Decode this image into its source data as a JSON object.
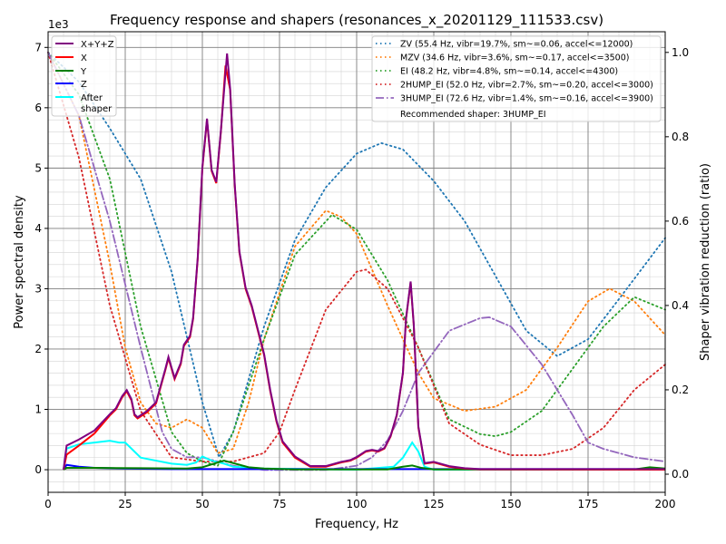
{
  "chart_data": {
    "type": "line",
    "title": "Frequency response and shapers (resonances_x_20201129_111533.csv)",
    "xlabel": "Frequency, Hz",
    "ylabel": "Power spectral density",
    "ylabel_right": "Shaper vibration reduction (ratio)",
    "y_offset_label": "1e3",
    "xlim": [
      0,
      200
    ],
    "ylim": [
      -375,
      7260
    ],
    "ylim_right": [
      -0.043,
      1.049
    ],
    "xticks": [
      0,
      25,
      50,
      75,
      100,
      125,
      150,
      175,
      200
    ],
    "yticks": [
      0,
      1,
      2,
      3,
      4,
      5,
      6,
      7
    ],
    "yticks_right": [
      "0.0",
      "0.2",
      "0.4",
      "0.6",
      "0.8",
      "1.0"
    ],
    "grid": true,
    "psd_series": [
      {
        "name": "X+Y+Z",
        "color": "#800080",
        "x": [
          5,
          6,
          10,
          15,
          20,
          22,
          24,
          25.5,
          27,
          28,
          29,
          32,
          35,
          38,
          39,
          41,
          43,
          44,
          46,
          47,
          48.5,
          50,
          51.5,
          53,
          54.5,
          56,
          58,
          59,
          60.5,
          62,
          64,
          66,
          68,
          70,
          72,
          74,
          76,
          80,
          85,
          90,
          95,
          98,
          100,
          103,
          105,
          107,
          109,
          111,
          113,
          115,
          116,
          117.5,
          118.5,
          120,
          122,
          125,
          130,
          135,
          140,
          200
        ],
        "y": [
          0,
          400,
          500,
          650,
          920,
          1020,
          1220,
          1320,
          1170,
          920,
          870,
          970,
          1120,
          1670,
          1870,
          1520,
          1770,
          2070,
          2220,
          2520,
          3520,
          5020,
          5820,
          4970,
          4770,
          5620,
          6900,
          6320,
          4720,
          3620,
          3020,
          2720,
          2320,
          1920,
          1320,
          820,
          470,
          220,
          60,
          60,
          130,
          160,
          210,
          310,
          330,
          310,
          360,
          560,
          910,
          1610,
          2510,
          3120,
          2420,
          720,
          110,
          130,
          60,
          25,
          10,
          10
        ]
      },
      {
        "name": "X",
        "color": "#ff0000",
        "x": [
          5,
          6,
          10,
          15,
          20,
          22,
          24,
          25.5,
          27,
          28,
          29,
          32,
          35,
          38,
          39,
          41,
          43,
          44,
          46,
          47,
          48.5,
          50,
          51.5,
          53,
          54.5,
          56,
          57.5,
          59,
          60.5,
          62,
          64,
          66,
          68,
          70,
          72,
          74,
          76,
          80,
          85,
          90,
          95,
          98,
          100,
          103,
          105,
          107,
          109,
          111,
          113,
          115,
          116,
          117.5,
          118.5,
          120,
          122,
          125,
          130,
          135,
          140,
          200
        ],
        "y": [
          0,
          250,
          400,
          600,
          900,
          1000,
          1200,
          1300,
          1150,
          900,
          850,
          950,
          1100,
          1650,
          1850,
          1500,
          1750,
          2050,
          2200,
          2500,
          3500,
          5000,
          5800,
          4950,
          4750,
          5600,
          6700,
          6300,
          4700,
          3600,
          3000,
          2700,
          2300,
          1900,
          1300,
          800,
          450,
          200,
          50,
          50,
          120,
          150,
          200,
          300,
          320,
          300,
          350,
          550,
          900,
          1600,
          2500,
          3100,
          2400,
          700,
          100,
          120,
          50,
          20,
          5,
          0
        ]
      },
      {
        "name": "Y",
        "color": "#008000",
        "x": [
          5,
          6,
          15,
          30,
          45,
          50,
          55,
          57,
          60,
          65,
          70,
          80,
          110,
          115,
          118,
          121,
          125,
          190,
          195,
          200
        ],
        "y": [
          0,
          30,
          30,
          25,
          20,
          40,
          120,
          150,
          110,
          40,
          20,
          5,
          5,
          50,
          70,
          30,
          5,
          5,
          40,
          20
        ]
      },
      {
        "name": "Z",
        "color": "#0000ff",
        "x": [
          5,
          6,
          10,
          15,
          25,
          40,
          200
        ],
        "y": [
          0,
          80,
          50,
          30,
          20,
          10,
          10
        ]
      },
      {
        "name": "After\nshaper",
        "color": "#00ffff",
        "x": [
          5,
          6,
          10,
          15,
          20,
          23,
          25,
          27,
          30,
          35,
          40,
          45,
          48,
          50,
          53,
          57,
          60,
          70,
          100,
          112,
          115,
          118,
          120,
          122,
          125,
          200
        ],
        "y": [
          0,
          350,
          420,
          450,
          480,
          450,
          450,
          350,
          200,
          150,
          100,
          80,
          120,
          220,
          150,
          100,
          50,
          20,
          0,
          50,
          200,
          450,
          300,
          50,
          0,
          0
        ]
      }
    ],
    "shaper_series": [
      {
        "name": "ZV (55.4 Hz, vibr=19.7%, sm~=0.06, accel<=12000)",
        "color": "#1f77b4",
        "style": "dotted",
        "x": [
          0,
          10,
          20,
          30,
          40,
          50,
          55.4,
          60,
          70,
          80,
          90,
          100,
          108,
          115,
          125,
          135,
          145,
          155,
          165,
          175,
          185,
          200
        ],
        "y": [
          1.0,
          0.93,
          0.82,
          0.7,
          0.48,
          0.17,
          0.04,
          0.1,
          0.35,
          0.555,
          0.68,
          0.76,
          0.785,
          0.77,
          0.695,
          0.6,
          0.47,
          0.34,
          0.28,
          0.32,
          0.415,
          0.56
        ]
      },
      {
        "name": "MZV (34.6 Hz, vibr=3.6%, sm~=0.17, accel<=3500)",
        "color": "#ff7f0e",
        "style": "dotted",
        "x": [
          0,
          10,
          20,
          25,
          30,
          35,
          40,
          45,
          50,
          55,
          60,
          65,
          70,
          80,
          90,
          95,
          100,
          110,
          120,
          125,
          135,
          145,
          155,
          165,
          175,
          182,
          190,
          200
        ],
        "y": [
          1.0,
          0.85,
          0.5,
          0.3,
          0.17,
          0.12,
          0.11,
          0.13,
          0.11,
          0.05,
          0.06,
          0.17,
          0.32,
          0.54,
          0.625,
          0.61,
          0.57,
          0.4,
          0.24,
          0.18,
          0.15,
          0.16,
          0.2,
          0.3,
          0.41,
          0.44,
          0.41,
          0.33
        ]
      },
      {
        "name": "EI (48.2 Hz, vibr=4.8%, sm~=0.14, accel<=4300)",
        "color": "#2ca02c",
        "style": "dotted",
        "x": [
          0,
          10,
          20,
          30,
          40,
          45,
          50,
          55,
          60,
          70,
          80,
          92,
          100,
          110,
          120,
          130,
          140,
          145,
          150,
          160,
          170,
          180,
          190,
          200
        ],
        "y": [
          1.0,
          0.9,
          0.7,
          0.35,
          0.1,
          0.05,
          0.03,
          0.02,
          0.1,
          0.32,
          0.52,
          0.615,
          0.58,
          0.46,
          0.3,
          0.13,
          0.095,
          0.09,
          0.1,
          0.15,
          0.25,
          0.35,
          0.42,
          0.39
        ]
      },
      {
        "name": "2HUMP_EI (52.0 Hz, vibr=2.7%, sm~=0.20, accel<=3000)",
        "color": "#d62728",
        "style": "dotted",
        "x": [
          0,
          10,
          20,
          30,
          40,
          50,
          60,
          70,
          75,
          80,
          90,
          100,
          103,
          110,
          120,
          130,
          140,
          150,
          160,
          170,
          180,
          190,
          200
        ],
        "y": [
          1.0,
          0.75,
          0.4,
          0.15,
          0.04,
          0.03,
          0.03,
          0.05,
          0.1,
          0.2,
          0.39,
          0.48,
          0.485,
          0.44,
          0.3,
          0.12,
          0.07,
          0.045,
          0.045,
          0.06,
          0.11,
          0.2,
          0.26
        ]
      },
      {
        "name": "3HUMP_EI (72.6 Hz, vibr=1.4%, sm~=0.16, accel<=3900)",
        "color": "#9467bd",
        "style": "dashdot",
        "x": [
          0,
          10,
          20,
          30,
          37,
          40,
          45,
          50,
          55,
          60,
          70,
          80,
          90,
          100,
          105,
          110,
          115,
          120,
          130,
          140,
          143,
          150,
          160,
          170,
          175,
          180,
          190,
          200
        ],
        "y": [
          1.0,
          0.85,
          0.6,
          0.3,
          0.1,
          0.06,
          0.04,
          0.04,
          0.03,
          0.02,
          0.01,
          0.01,
          0.01,
          0.02,
          0.04,
          0.08,
          0.15,
          0.24,
          0.34,
          0.37,
          0.372,
          0.35,
          0.26,
          0.14,
          0.075,
          0.06,
          0.04,
          0.03
        ]
      }
    ],
    "recommended": "Recommended shaper: 3HUMP_EI"
  }
}
